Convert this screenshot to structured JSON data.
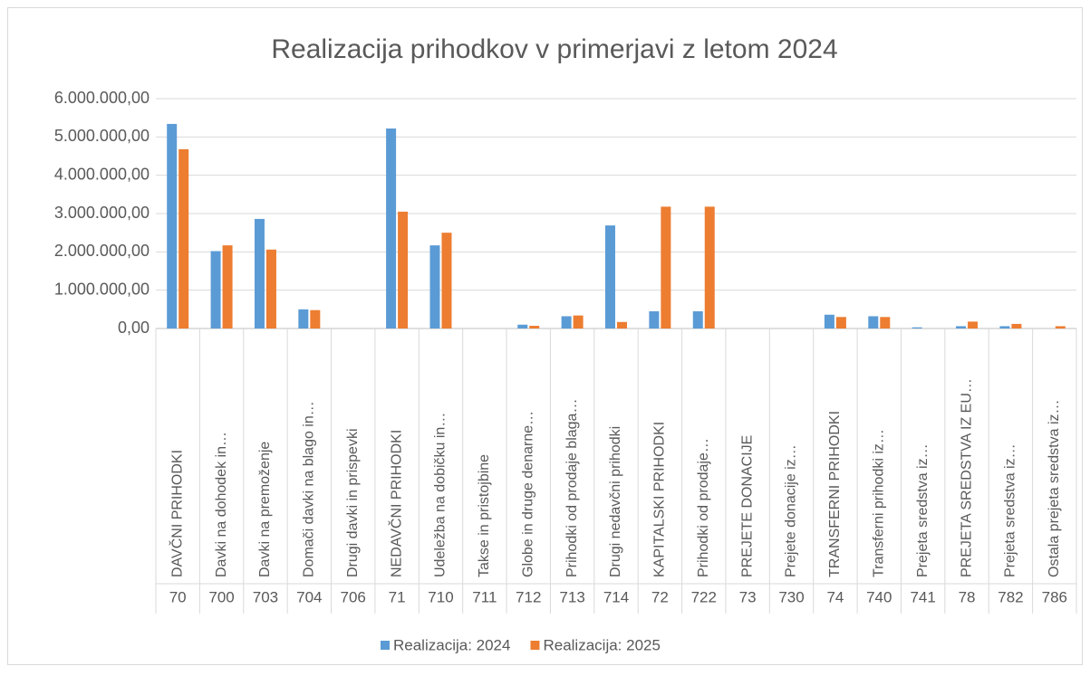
{
  "chart_data": {
    "type": "bar",
    "title": "Realizacija prihodkov v primerjavi z letom 2024",
    "categories": [
      "70",
      "700",
      "703",
      "704",
      "706",
      "71",
      "710",
      "711",
      "712",
      "713",
      "714",
      "72",
      "722",
      "73",
      "730",
      "74",
      "740",
      "741",
      "78",
      "782",
      "786"
    ],
    "category_names": [
      "DAVČNI PRIHODKI",
      "Davki na dohodek in…",
      "Davki na premoženje",
      "Domači davki na blago in…",
      "Drugi davki in prispevki",
      "NEDAVČNI PRIHODKI",
      "Udeležba na dobičku in…",
      "Takse in pristojbine",
      "Globe in druge denarne…",
      "Prihodki od prodaje blaga…",
      "Drugi nedavčni prihodki",
      "KAPITALSKI PRIHODKI",
      "Prihodki od prodaje…",
      "PREJETE DONACIJE",
      "Prejete donacije iz…",
      "TRANSFERNI PRIHODKI",
      "Transferni prihodki iz…",
      "Prejeta sredstva iz…",
      "PREJETA SREDSTVA IZ EU…",
      "Prejeta sredstva iz…",
      "Ostala prejeta sredstva iz…"
    ],
    "series": [
      {
        "name": "Realizacija: 2024",
        "color": "#5b9bd5",
        "values": [
          5340000,
          2020000,
          2860000,
          500000,
          0,
          5220000,
          2170000,
          0,
          100000,
          320000,
          2690000,
          450000,
          450000,
          0,
          0,
          360000,
          320000,
          30000,
          60000,
          60000,
          0
        ]
      },
      {
        "name": "Realizacija: 2025",
        "color": "#ed7d31",
        "values": [
          4680000,
          2170000,
          2060000,
          480000,
          0,
          3050000,
          2500000,
          0,
          70000,
          340000,
          170000,
          3180000,
          3180000,
          0,
          0,
          300000,
          300000,
          0,
          180000,
          120000,
          60000
        ]
      }
    ],
    "ylim": [
      0,
      6000000
    ],
    "yticks": [
      {
        "value": 0,
        "label": "0,00"
      },
      {
        "value": 1000000,
        "label": "1.000.000,00"
      },
      {
        "value": 2000000,
        "label": "2.000.000,00"
      },
      {
        "value": 3000000,
        "label": "3.000.000,00"
      },
      {
        "value": 4000000,
        "label": "4.000.000,00"
      },
      {
        "value": 5000000,
        "label": "5.000.000,00"
      },
      {
        "value": 6000000,
        "label": "6.000.000,00"
      }
    ],
    "grid": true
  }
}
